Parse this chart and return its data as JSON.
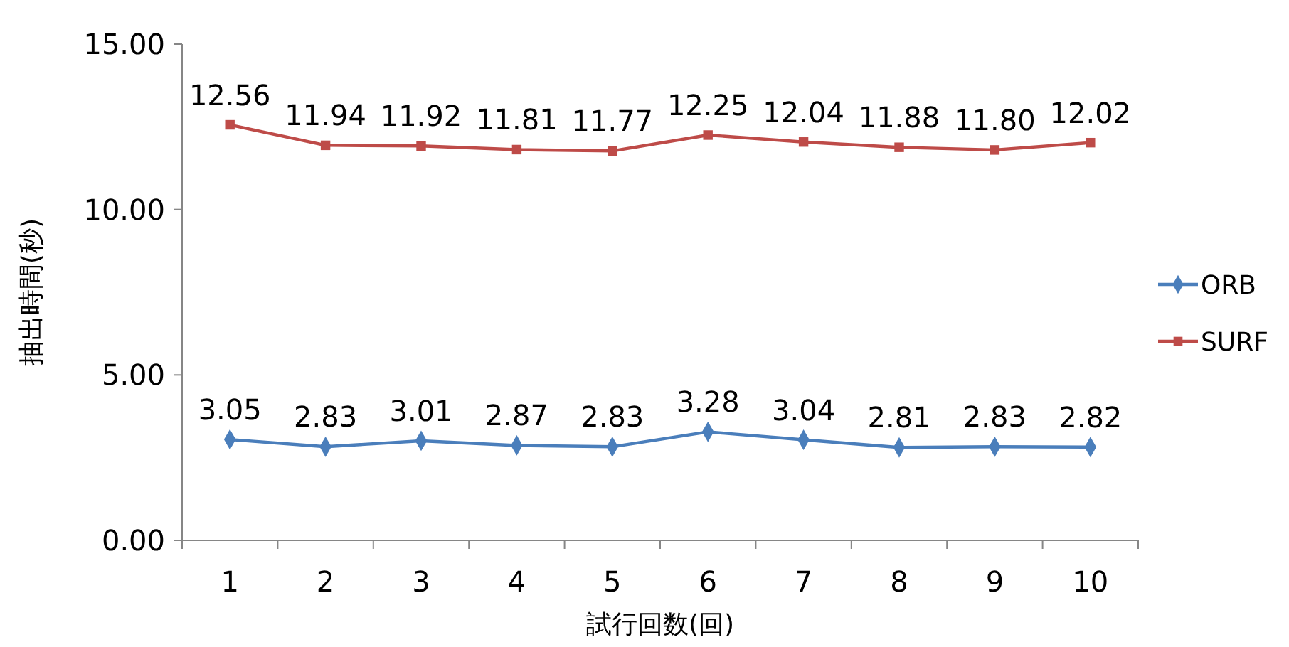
{
  "chart_data": {
    "type": "line",
    "xlabel": "試行回数(回)",
    "ylabel": "抽出時間(秒)",
    "categories": [
      "1",
      "2",
      "3",
      "4",
      "5",
      "6",
      "7",
      "8",
      "9",
      "10"
    ],
    "series": [
      {
        "name": "ORB",
        "color": "#4a7ebb",
        "marker": "diamond",
        "values": [
          3.05,
          2.83,
          3.01,
          2.87,
          2.83,
          3.28,
          3.04,
          2.81,
          2.83,
          2.82
        ],
        "value_labels": [
          "3.05",
          "2.83",
          "3.01",
          "2.87",
          "2.83",
          "3.28",
          "3.04",
          "2.81",
          "2.83",
          "2.82"
        ]
      },
      {
        "name": "SURF",
        "color": "#be4b48",
        "marker": "square",
        "values": [
          12.56,
          11.94,
          11.92,
          11.81,
          11.77,
          12.25,
          12.04,
          11.88,
          11.8,
          12.02
        ],
        "value_labels": [
          "12.56",
          "11.94",
          "11.92",
          "11.81",
          "11.77",
          "12.25",
          "12.04",
          "11.88",
          "11.80",
          "12.02"
        ]
      }
    ],
    "ylim": [
      0,
      15
    ],
    "yticks": [
      {
        "value": 0,
        "label": "0.00"
      },
      {
        "value": 5,
        "label": "5.00"
      },
      {
        "value": 10,
        "label": "10.00"
      },
      {
        "value": 15,
        "label": "15.00"
      }
    ],
    "grid": false,
    "legend": "right"
  }
}
